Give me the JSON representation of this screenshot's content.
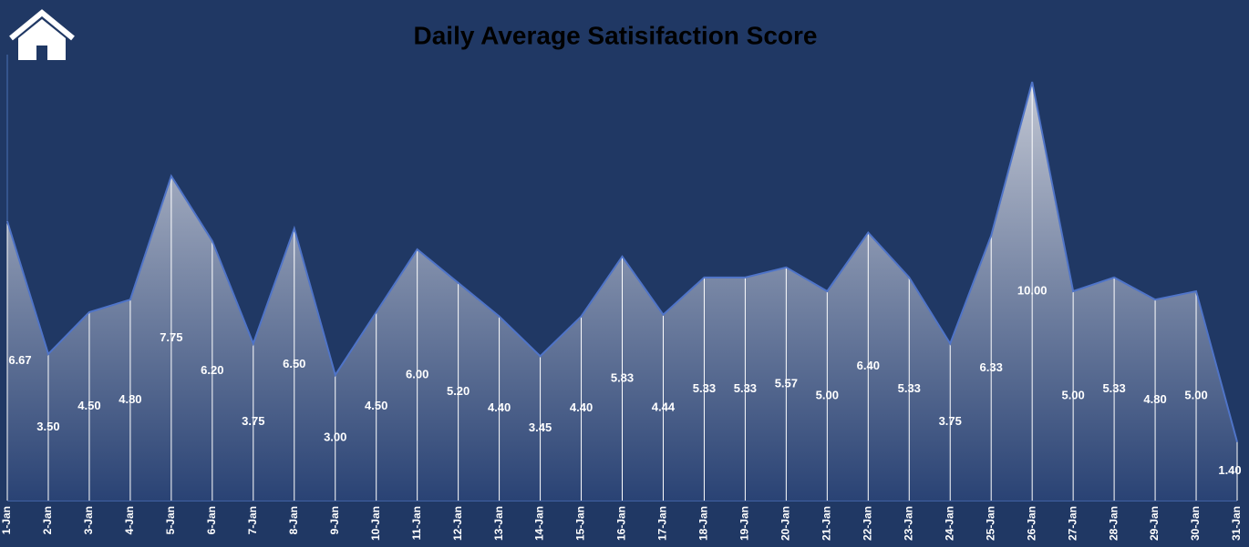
{
  "chart_data": {
    "type": "area",
    "title": "Daily Average Satisifaction Score",
    "categories": [
      "1-Jan",
      "2-Jan",
      "3-Jan",
      "4-Jan",
      "5-Jan",
      "6-Jan",
      "7-Jan",
      "8-Jan",
      "9-Jan",
      "10-Jan",
      "11-Jan",
      "12-Jan",
      "13-Jan",
      "14-Jan",
      "15-Jan",
      "16-Jan",
      "17-Jan",
      "18-Jan",
      "19-Jan",
      "20-Jan",
      "21-Jan",
      "22-Jan",
      "23-Jan",
      "24-Jan",
      "25-Jan",
      "26-Jan",
      "27-Jan",
      "28-Jan",
      "29-Jan",
      "30-Jan",
      "31-Jan"
    ],
    "values": [
      6.67,
      3.5,
      4.5,
      4.8,
      7.75,
      6.2,
      3.75,
      6.5,
      3,
      4.5,
      6,
      5.2,
      4.4,
      3.45,
      4.4,
      5.83,
      4.44,
      5.33,
      5.33,
      5.57,
      5,
      6.4,
      5.33,
      3.75,
      6.33,
      10,
      5,
      5.33,
      4.8,
      5,
      1.4
    ],
    "value_labels": [
      "6.67",
      "3.50",
      "4.50",
      "4.80",
      "7.75",
      "6.20",
      "3.75",
      "6.50",
      "3.00",
      "4.50",
      "6.00",
      "5.20",
      "4.40",
      "3.45",
      "4.40",
      "5.83",
      "4.44",
      "5.33",
      "5.33",
      "5.57",
      "5.00",
      "6.40",
      "5.33",
      "3.75",
      "6.33",
      "10.00",
      "5.00",
      "5.33",
      "4.80",
      "5.00",
      "1.40"
    ],
    "color": "#4f74c8",
    "ylim": [
      0,
      10
    ]
  }
}
